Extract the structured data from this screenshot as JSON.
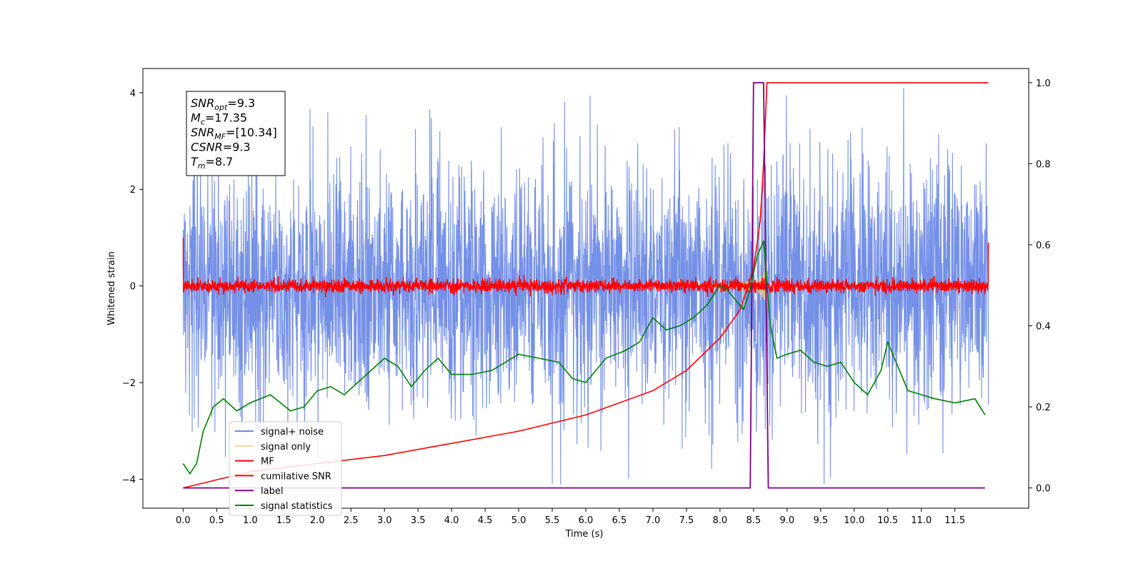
{
  "chart_data": {
    "type": "line",
    "xlabel": "Time (s)",
    "ylabel": "Whitened strain",
    "xlim": [
      -0.6,
      12.6
    ],
    "ylim": [
      -4.6,
      4.5
    ],
    "y2lim": [
      -0.05,
      1.035
    ],
    "xticks": [
      "0.0",
      "0.5",
      "1.0",
      "1.5",
      "2.0",
      "2.5",
      "3.0",
      "3.5",
      "4.0",
      "4.5",
      "5.0",
      "5.5",
      "6.0",
      "6.5",
      "7.0",
      "7.5",
      "8.0",
      "8.5",
      "9.0",
      "9.5",
      "10.0",
      "10.5",
      "11.0",
      "11.5"
    ],
    "yticks": [
      "4",
      "2",
      "0",
      "−2",
      "−4"
    ],
    "y2ticks": [
      "1.0",
      "0.8",
      "0.6",
      "0.4",
      "0.2",
      "0.0"
    ],
    "legend_position": "lower left",
    "annotation": {
      "lines": [
        {
          "var": "SNR",
          "sub": "opt",
          "val": "=9.3"
        },
        {
          "var": "M",
          "sub": "c",
          "val": "=17.35"
        },
        {
          "var": "SNR",
          "sub": "MF",
          "val": "=[10.34]"
        },
        {
          "var": "CSNR",
          "sub": "",
          "val": "=9.3"
        },
        {
          "var": "T",
          "sub": "m",
          "val": "=8.7"
        }
      ]
    },
    "series": [
      {
        "name": "signal+ noise",
        "color": "#6d8ae6",
        "axis": "left",
        "description": "whitened noise ~N(0,1) over 0-12 s with injected chirp"
      },
      {
        "name": "signal only",
        "color": "#f2c879",
        "axis": "left",
        "chirp_end_s": 8.7
      },
      {
        "name": "MF",
        "color": "#ff0000",
        "axis": "left"
      },
      {
        "name": "cumilative SNR",
        "color": "#ff0000",
        "axis": "right",
        "x": [
          0.0,
          1.0,
          2.0,
          3.0,
          4.0,
          5.0,
          6.0,
          7.0,
          7.5,
          8.0,
          8.3,
          8.5,
          8.6,
          8.65,
          8.7,
          12.0
        ],
        "values": [
          0.0,
          0.04,
          0.06,
          0.08,
          0.11,
          0.14,
          0.18,
          0.24,
          0.29,
          0.37,
          0.44,
          0.54,
          0.66,
          0.8,
          1.0,
          1.0
        ]
      },
      {
        "name": "label",
        "color": "#800080",
        "axis": "right",
        "x": [
          0.0,
          8.45,
          8.5,
          8.65,
          8.72,
          11.95
        ],
        "values": [
          0.0,
          0.0,
          1.0,
          1.0,
          0.0,
          0.0
        ]
      },
      {
        "name": "signal statistics",
        "color": "#008000",
        "axis": "right",
        "x": [
          0.0,
          0.1,
          0.2,
          0.3,
          0.45,
          0.6,
          0.8,
          1.0,
          1.3,
          1.6,
          1.8,
          2.0,
          2.2,
          2.4,
          2.6,
          2.8,
          3.0,
          3.2,
          3.4,
          3.6,
          3.8,
          4.0,
          4.3,
          4.6,
          5.0,
          5.3,
          5.6,
          5.8,
          6.0,
          6.3,
          6.6,
          6.8,
          7.0,
          7.2,
          7.4,
          7.6,
          7.8,
          8.0,
          8.1,
          8.2,
          8.35,
          8.45,
          8.55,
          8.65,
          8.75,
          8.85,
          9.0,
          9.2,
          9.4,
          9.6,
          9.8,
          10.0,
          10.2,
          10.4,
          10.5,
          10.6,
          10.8,
          11.0,
          11.2,
          11.5,
          11.8,
          11.95
        ],
        "values": [
          0.06,
          0.035,
          0.06,
          0.14,
          0.2,
          0.22,
          0.19,
          0.21,
          0.23,
          0.19,
          0.2,
          0.24,
          0.25,
          0.23,
          0.26,
          0.29,
          0.32,
          0.3,
          0.25,
          0.29,
          0.32,
          0.28,
          0.28,
          0.29,
          0.33,
          0.32,
          0.31,
          0.27,
          0.26,
          0.32,
          0.34,
          0.36,
          0.42,
          0.39,
          0.4,
          0.42,
          0.45,
          0.5,
          0.49,
          0.47,
          0.44,
          0.49,
          0.57,
          0.61,
          0.4,
          0.32,
          0.33,
          0.34,
          0.31,
          0.3,
          0.31,
          0.26,
          0.23,
          0.29,
          0.36,
          0.32,
          0.24,
          0.23,
          0.22,
          0.21,
          0.22,
          0.18
        ]
      }
    ]
  }
}
